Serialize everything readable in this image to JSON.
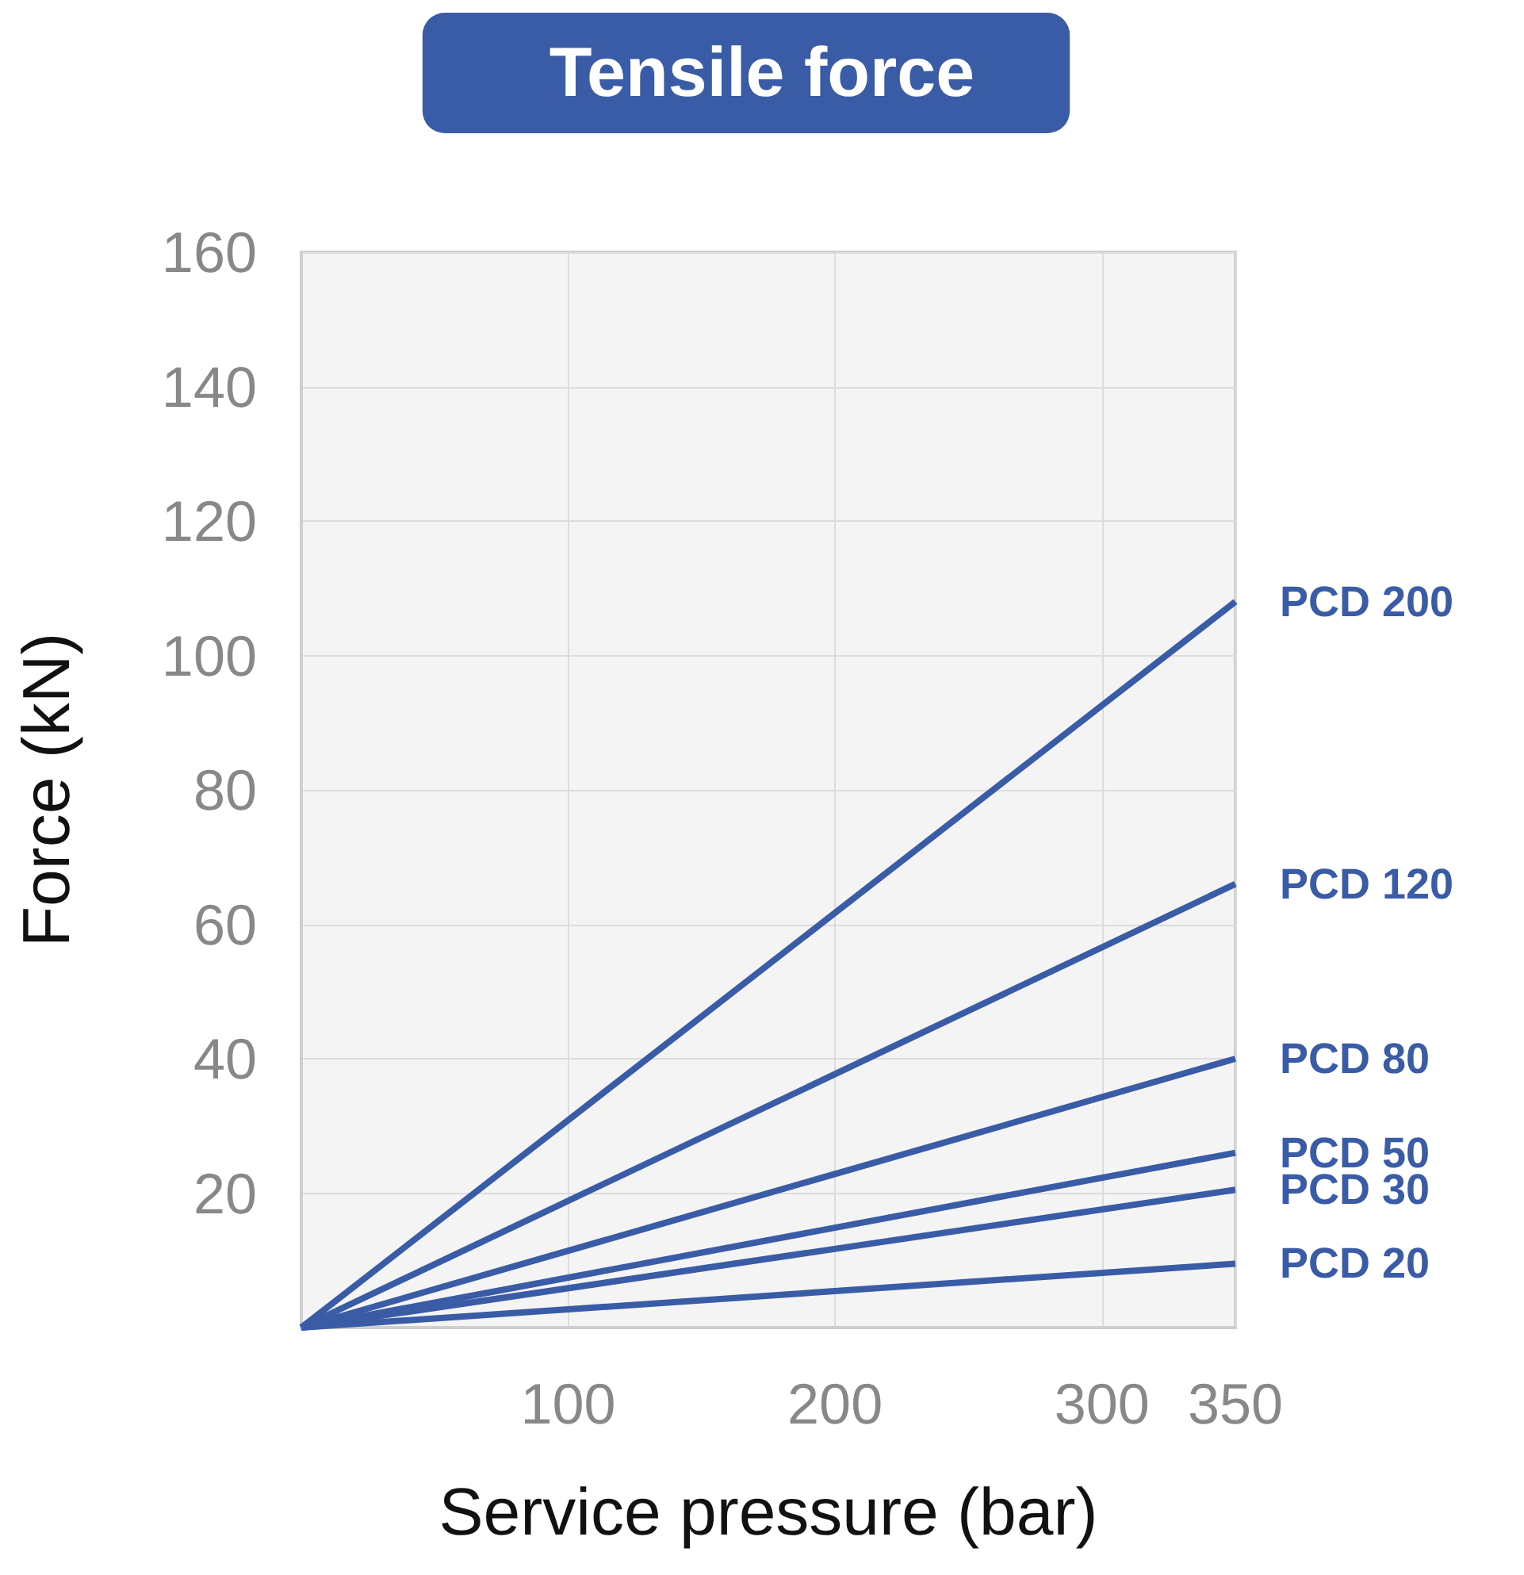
{
  "chart_data": {
    "type": "line",
    "title": "Tensile force",
    "xlabel": "Service pressure (bar)",
    "ylabel": "Force (kN)",
    "x": [
      0,
      350
    ],
    "xlim": [
      0,
      350
    ],
    "ylim": [
      0,
      160
    ],
    "xticks": [
      100,
      200,
      300,
      350
    ],
    "yticks": [
      20,
      40,
      60,
      80,
      100,
      120,
      140,
      160
    ],
    "grid": true,
    "legend": false,
    "marker": "none",
    "line_style": "solid",
    "series": [
      {
        "name": "PCD 200",
        "color": "#3a5ba5",
        "values": [
          0,
          108
        ]
      },
      {
        "name": "PCD 120",
        "color": "#3a5ba5",
        "values": [
          0,
          66
        ]
      },
      {
        "name": "PCD 80",
        "color": "#3a5ba5",
        "values": [
          0,
          40
        ]
      },
      {
        "name": "PCD 50",
        "color": "#3a5ba5",
        "values": [
          0,
          26
        ]
      },
      {
        "name": "PCD 30",
        "color": "#3a5ba5",
        "values": [
          0,
          20.5
        ]
      },
      {
        "name": "PCD 20",
        "color": "#3a5ba5",
        "values": [
          0,
          9.5
        ]
      }
    ]
  }
}
